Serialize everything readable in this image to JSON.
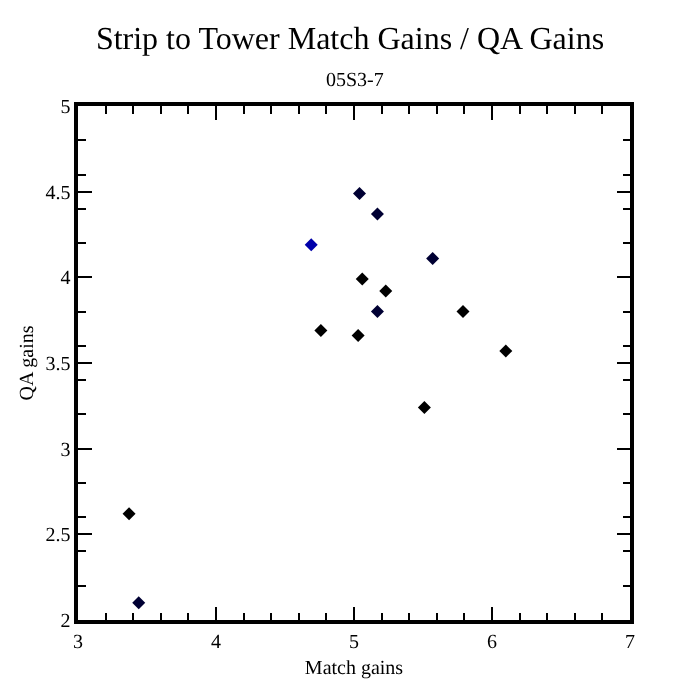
{
  "chart_data": {
    "type": "scatter",
    "title": "Strip to Tower Match Gains / QA Gains",
    "subtitle": "05S3-7",
    "xlabel": "Match gains",
    "ylabel": "QA gains",
    "x": [
      3.37,
      3.44,
      5.04,
      5.17,
      4.69,
      5.06,
      5.57,
      5.23,
      5.17,
      5.79,
      4.76,
      5.03,
      6.1,
      5.51
    ],
    "values": [
      2.62,
      2.1,
      4.49,
      4.37,
      4.19,
      3.99,
      4.11,
      3.92,
      3.8,
      3.8,
      3.69,
      3.66,
      3.57,
      3.24
    ],
    "colors": [
      "#000000",
      "#000033",
      "#000033",
      "#000033",
      "#0000aa",
      "#000000",
      "#000033",
      "#000000",
      "#000033",
      "#000000",
      "#000000",
      "#000000",
      "#000000",
      "#000000"
    ],
    "marker": "diamond",
    "xlim": [
      3,
      7
    ],
    "xticks": [
      3,
      4,
      5,
      6,
      7
    ],
    "ylim": [
      2,
      5
    ],
    "yticks": [
      2,
      2.5,
      3,
      3.5,
      4,
      4.5,
      5
    ]
  }
}
